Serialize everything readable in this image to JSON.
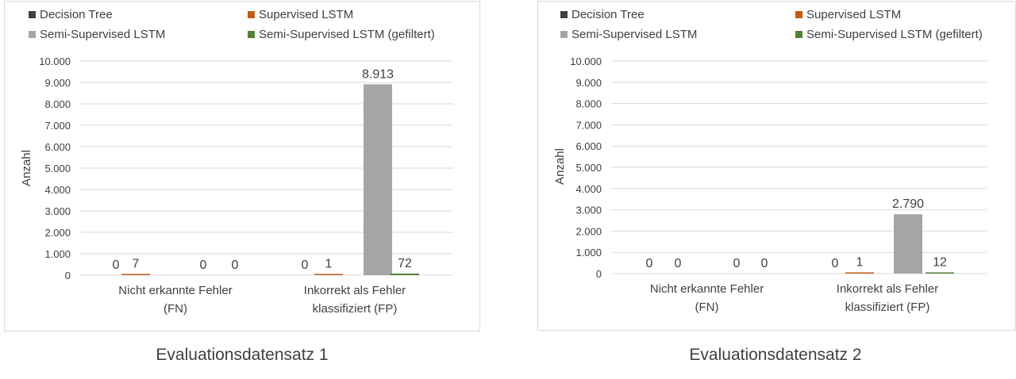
{
  "colors": {
    "decision_tree": "#404040",
    "supervised_lstm": "#c55a11",
    "semi_supervised_lstm": "#a5a5a5",
    "semi_supervised_lstm_filtered": "#548235",
    "grid": "#d9d9d9",
    "text": "#404040"
  },
  "chart_data": [
    {
      "type": "bar",
      "caption": "Evaluationsdatensatz 1",
      "ylabel": "Anzahl",
      "ylim": [
        0,
        10000
      ],
      "yticks": [
        "0",
        "1.000",
        "2.000",
        "3.000",
        "4.000",
        "5.000",
        "6.000",
        "7.000",
        "8.000",
        "9.000",
        "10.000"
      ],
      "categories": [
        [
          "Nicht erkannte Fehler",
          "(FN)"
        ],
        [
          "Inkorrekt als Fehler",
          "klassifiziert (FP)"
        ]
      ],
      "series": [
        {
          "name": "Decision Tree",
          "values": [
            0,
            0
          ],
          "labels": [
            "0",
            "0"
          ]
        },
        {
          "name": "Supervised LSTM",
          "values": [
            7,
            1
          ],
          "labels": [
            "7",
            "1"
          ]
        },
        {
          "name": "Semi-Supervised LSTM",
          "values": [
            0,
            8913
          ],
          "labels": [
            "0",
            "8.913"
          ]
        },
        {
          "name": "Semi-Supervised LSTM (gefiltert)",
          "values": [
            0,
            72
          ],
          "labels": [
            "0",
            "72"
          ]
        }
      ],
      "legend": "top",
      "grid": true
    },
    {
      "type": "bar",
      "caption": "Evaluationsdatensatz 2",
      "ylabel": "Anzahl",
      "ylim": [
        0,
        10000
      ],
      "yticks": [
        "0",
        "1.000",
        "2.000",
        "3.000",
        "4.000",
        "5.000",
        "6.000",
        "7.000",
        "8.000",
        "9.000",
        "10.000"
      ],
      "categories": [
        [
          "Nicht erkannte Fehler",
          "(FN)"
        ],
        [
          "Inkorrekt als Fehler",
          "klassifiziert (FP)"
        ]
      ],
      "series": [
        {
          "name": "Decision Tree",
          "values": [
            0,
            0
          ],
          "labels": [
            "0",
            "0"
          ]
        },
        {
          "name": "Supervised LSTM",
          "values": [
            0,
            1
          ],
          "labels": [
            "0",
            "1"
          ]
        },
        {
          "name": "Semi-Supervised LSTM",
          "values": [
            0,
            2790
          ],
          "labels": [
            "0",
            "2.790"
          ]
        },
        {
          "name": "Semi-Supervised LSTM (gefiltert)",
          "values": [
            0,
            12
          ],
          "labels": [
            "0",
            "12"
          ]
        }
      ],
      "legend": "top",
      "grid": true
    }
  ]
}
